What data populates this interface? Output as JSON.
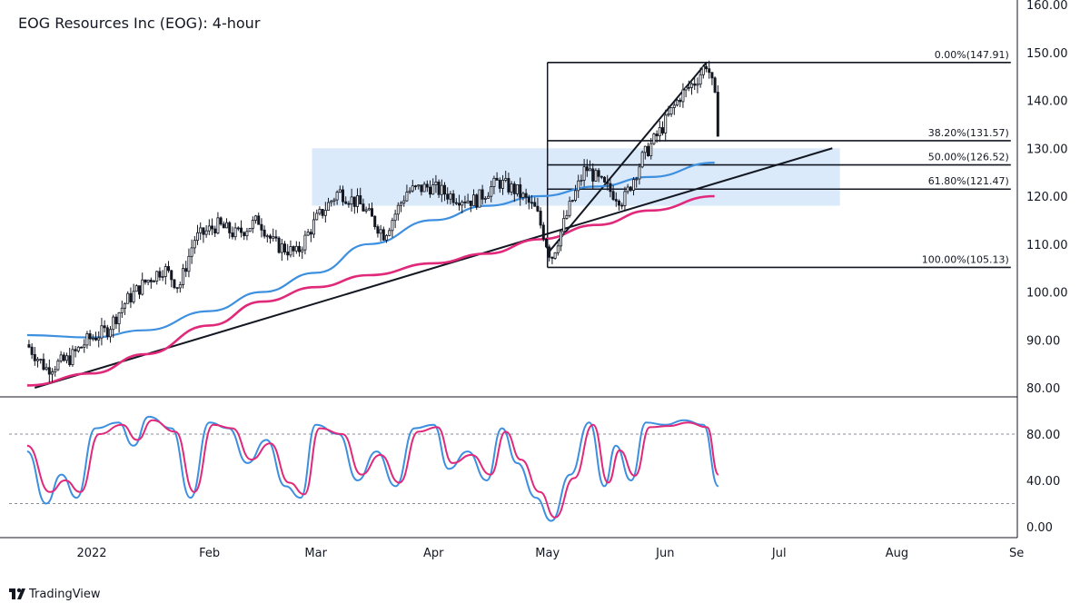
{
  "chart_data": {
    "type": "candlestick",
    "title": "EOG Resources Inc (EOG): 4-hour",
    "price_axis": {
      "ylim": [
        78,
        160
      ],
      "ticks": [
        "80.00",
        "90.00",
        "100.00",
        "110.00",
        "120.00",
        "130.00",
        "140.00",
        "150.00",
        "160.00"
      ]
    },
    "stoch_axis": {
      "ylim": [
        0,
        100
      ],
      "ticks": [
        "0.00",
        "40.00",
        "80.00"
      ],
      "levels": [
        20,
        80
      ]
    },
    "time_axis": {
      "labels": [
        "2022",
        "Feb",
        "Mar",
        "Apr",
        "May",
        "Jun",
        "Jul",
        "Aug",
        "Se"
      ]
    },
    "colors": {
      "up": "#26a69a",
      "down": "#ef5350",
      "wick": "#131722",
      "ma_fast": "#3d8fe0",
      "ma_slow": "#e0297a",
      "stoch_k": "#3d8fe0",
      "stoch_d": "#e0297a",
      "zone": "#dbeafa"
    },
    "price_path": [
      [
        "2021-12-15",
        89
      ],
      [
        "2021-12-20",
        84
      ],
      [
        "2021-12-26",
        86
      ],
      [
        "2021-12-31",
        90
      ],
      [
        "2022-01-05",
        92
      ],
      [
        "2022-01-10",
        98
      ],
      [
        "2022-01-15",
        102
      ],
      [
        "2022-01-20",
        105
      ],
      [
        "2022-01-24",
        101
      ],
      [
        "2022-01-28",
        111
      ],
      [
        "2022-02-03",
        114
      ],
      [
        "2022-02-08",
        112
      ],
      [
        "2022-02-14",
        115
      ],
      [
        "2022-02-18",
        110
      ],
      [
        "2022-02-24",
        108
      ],
      [
        "2022-03-01",
        115
      ],
      [
        "2022-03-07",
        121
      ],
      [
        "2022-03-13",
        118
      ],
      [
        "2022-03-19",
        112
      ],
      [
        "2022-03-25",
        121
      ],
      [
        "2022-03-31",
        122
      ],
      [
        "2022-04-06",
        120
      ],
      [
        "2022-04-12",
        119
      ],
      [
        "2022-04-18",
        123
      ],
      [
        "2022-04-23",
        121
      ],
      [
        "2022-04-28",
        117
      ],
      [
        "2022-05-02",
        107
      ],
      [
        "2022-05-07",
        118
      ],
      [
        "2022-05-11",
        126
      ],
      [
        "2022-05-16",
        122
      ],
      [
        "2022-05-21",
        119
      ],
      [
        "2022-05-26",
        128
      ],
      [
        "2022-05-31",
        134
      ],
      [
        "2022-06-05",
        141
      ],
      [
        "2022-06-09",
        144
      ],
      [
        "2022-06-12",
        147.9
      ],
      [
        "2022-06-14",
        141
      ],
      [
        "2022-06-15",
        133
      ]
    ],
    "ma_fast": [
      [
        "2021-12-15",
        91
      ],
      [
        "2022-01-01",
        90.5
      ],
      [
        "2022-01-15",
        92
      ],
      [
        "2022-02-01",
        96
      ],
      [
        "2022-02-15",
        100
      ],
      [
        "2022-03-01",
        104
      ],
      [
        "2022-03-15",
        110
      ],
      [
        "2022-04-01",
        115
      ],
      [
        "2022-04-15",
        118
      ],
      [
        "2022-04-29",
        120
      ],
      [
        "2022-05-14",
        122
      ],
      [
        "2022-05-28",
        124
      ],
      [
        "2022-06-14",
        127
      ]
    ],
    "ma_slow": [
      [
        "2021-12-15",
        80.5
      ],
      [
        "2022-01-01",
        83
      ],
      [
        "2022-01-15",
        87
      ],
      [
        "2022-02-01",
        93
      ],
      [
        "2022-02-15",
        98
      ],
      [
        "2022-03-01",
        101
      ],
      [
        "2022-03-15",
        103.5
      ],
      [
        "2022-04-01",
        106
      ],
      [
        "2022-04-15",
        108
      ],
      [
        "2022-04-29",
        111
      ],
      [
        "2022-05-14",
        114
      ],
      [
        "2022-05-28",
        117
      ],
      [
        "2022-06-14",
        120
      ]
    ],
    "trendlines": [
      {
        "from": [
          "2021-12-17",
          80
        ],
        "to": [
          "2022-07-15",
          130
        ]
      },
      {
        "from": [
          "2022-05-01",
          108
        ],
        "to": [
          "2022-06-12",
          148
        ]
      }
    ],
    "zone": {
      "from": "2022-02-28",
      "to": "2022-07-17",
      "ymin": 118,
      "ymax": 130
    },
    "fib_levels": [
      {
        "label": "0.00%(147.91)",
        "price": 147.91
      },
      {
        "label": "38.20%(131.57)",
        "price": 131.57
      },
      {
        "label": "50.00%(126.52)",
        "price": 126.52
      },
      {
        "label": "61.80%(121.47)",
        "price": 121.47
      },
      {
        "label": "100.00%(105.13)",
        "price": 105.13
      }
    ],
    "fib_range": {
      "from": "2022-05-01",
      "to": "2022-08-31"
    },
    "stoch_k": [
      [
        "2021-12-15",
        65
      ],
      [
        "2021-12-20",
        20
      ],
      [
        "2021-12-24",
        45
      ],
      [
        "2021-12-28",
        25
      ],
      [
        "2022-01-02",
        85
      ],
      [
        "2022-01-08",
        90
      ],
      [
        "2022-01-12",
        70
      ],
      [
        "2022-01-16",
        95
      ],
      [
        "2022-01-22",
        85
      ],
      [
        "2022-01-27",
        25
      ],
      [
        "2022-02-01",
        90
      ],
      [
        "2022-02-06",
        85
      ],
      [
        "2022-02-11",
        55
      ],
      [
        "2022-02-16",
        75
      ],
      [
        "2022-02-21",
        35
      ],
      [
        "2022-02-25",
        25
      ],
      [
        "2022-03-01",
        88
      ],
      [
        "2022-03-07",
        80
      ],
      [
        "2022-03-12",
        40
      ],
      [
        "2022-03-17",
        65
      ],
      [
        "2022-03-22",
        35
      ],
      [
        "2022-03-27",
        85
      ],
      [
        "2022-04-01",
        88
      ],
      [
        "2022-04-05",
        50
      ],
      [
        "2022-04-10",
        65
      ],
      [
        "2022-04-15",
        40
      ],
      [
        "2022-04-19",
        85
      ],
      [
        "2022-04-23",
        55
      ],
      [
        "2022-04-28",
        25
      ],
      [
        "2022-05-02",
        5
      ],
      [
        "2022-05-07",
        45
      ],
      [
        "2022-05-12",
        90
      ],
      [
        "2022-05-16",
        35
      ],
      [
        "2022-05-19",
        70
      ],
      [
        "2022-05-23",
        40
      ],
      [
        "2022-05-27",
        90
      ],
      [
        "2022-06-01",
        88
      ],
      [
        "2022-06-06",
        92
      ],
      [
        "2022-06-11",
        88
      ],
      [
        "2022-06-15",
        35
      ]
    ],
    "stoch_d": [
      [
        "2021-12-15",
        70
      ],
      [
        "2021-12-21",
        30
      ],
      [
        "2021-12-25",
        40
      ],
      [
        "2021-12-29",
        30
      ],
      [
        "2022-01-03",
        80
      ],
      [
        "2022-01-09",
        88
      ],
      [
        "2022-01-13",
        75
      ],
      [
        "2022-01-17",
        92
      ],
      [
        "2022-01-23",
        82
      ],
      [
        "2022-01-28",
        30
      ],
      [
        "2022-02-02",
        88
      ],
      [
        "2022-02-07",
        85
      ],
      [
        "2022-02-12",
        58
      ],
      [
        "2022-02-17",
        72
      ],
      [
        "2022-02-22",
        38
      ],
      [
        "2022-02-26",
        28
      ],
      [
        "2022-03-02",
        85
      ],
      [
        "2022-03-08",
        80
      ],
      [
        "2022-03-13",
        45
      ],
      [
        "2022-03-18",
        62
      ],
      [
        "2022-03-23",
        38
      ],
      [
        "2022-03-28",
        82
      ],
      [
        "2022-04-02",
        86
      ],
      [
        "2022-04-06",
        55
      ],
      [
        "2022-04-11",
        62
      ],
      [
        "2022-04-16",
        45
      ],
      [
        "2022-04-20",
        82
      ],
      [
        "2022-04-24",
        58
      ],
      [
        "2022-04-29",
        30
      ],
      [
        "2022-05-03",
        8
      ],
      [
        "2022-05-08",
        42
      ],
      [
        "2022-05-13",
        88
      ],
      [
        "2022-05-17",
        38
      ],
      [
        "2022-05-20",
        66
      ],
      [
        "2022-05-24",
        44
      ],
      [
        "2022-05-28",
        86
      ],
      [
        "2022-06-02",
        87
      ],
      [
        "2022-06-07",
        90
      ],
      [
        "2022-06-12",
        86
      ],
      [
        "2022-06-15",
        45
      ]
    ]
  },
  "branding": {
    "logo_text": "TradingView"
  }
}
